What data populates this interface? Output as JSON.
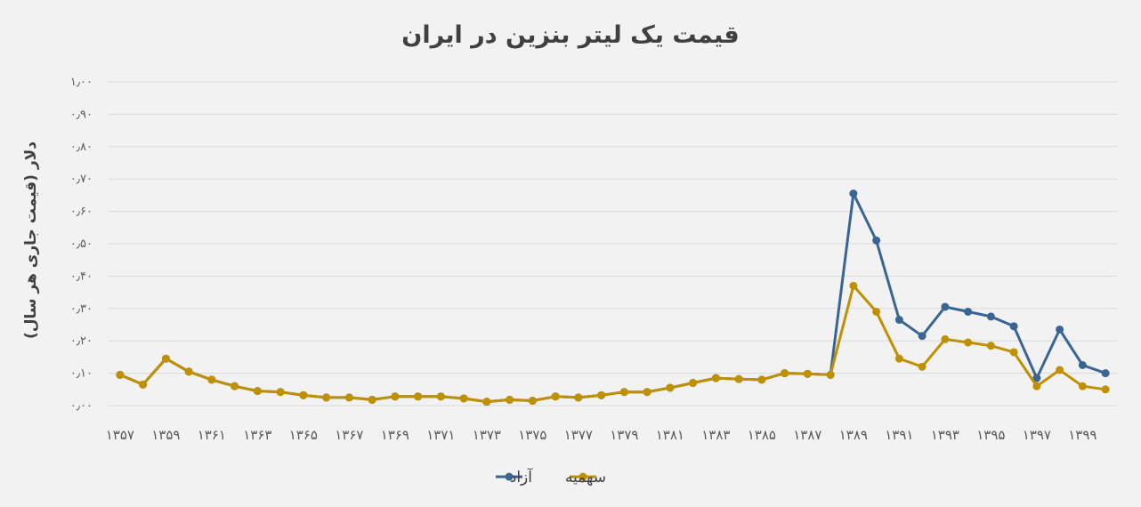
{
  "chart_data": {
    "type": "line",
    "title": "قیمت یک لیتر بنزین در ایران",
    "xlabel": "",
    "ylabel": "دلار (قیمت جاری هر سال)",
    "ylim": [
      0,
      1
    ],
    "yticks": [
      {
        "value": 0.0,
        "label": "۰٫۰۰"
      },
      {
        "value": 0.1,
        "label": "۰٫۱۰"
      },
      {
        "value": 0.2,
        "label": "۰٫۲۰"
      },
      {
        "value": 0.3,
        "label": "۰٫۳۰"
      },
      {
        "value": 0.4,
        "label": "۰٫۴۰"
      },
      {
        "value": 0.5,
        "label": "۰٫۵۰"
      },
      {
        "value": 0.6,
        "label": "۰٫۶۰"
      },
      {
        "value": 0.7,
        "label": "۰٫۷۰"
      },
      {
        "value": 0.8,
        "label": "۰٫۸۰"
      },
      {
        "value": 0.9,
        "label": "۰٫۹۰"
      },
      {
        "value": 1.0,
        "label": "۱٫۰۰"
      }
    ],
    "x": [
      1357,
      1358,
      1359,
      1360,
      1361,
      1362,
      1363,
      1364,
      1365,
      1366,
      1367,
      1368,
      1369,
      1370,
      1371,
      1372,
      1373,
      1374,
      1375,
      1376,
      1377,
      1378,
      1379,
      1380,
      1381,
      1382,
      1383,
      1384,
      1385,
      1386,
      1387,
      1388,
      1389,
      1390,
      1391,
      1392,
      1393,
      1394,
      1395,
      1396,
      1397,
      1398,
      1399,
      1400
    ],
    "xtick_labels": [
      {
        "x": 1357,
        "label": "۱۳۵۷"
      },
      {
        "x": 1359,
        "label": "۱۳۵۹"
      },
      {
        "x": 1361,
        "label": "۱۳۶۱"
      },
      {
        "x": 1363,
        "label": "۱۳۶۳"
      },
      {
        "x": 1365,
        "label": "۱۳۶۵"
      },
      {
        "x": 1367,
        "label": "۱۳۶۷"
      },
      {
        "x": 1369,
        "label": "۱۳۶۹"
      },
      {
        "x": 1371,
        "label": "۱۳۷۱"
      },
      {
        "x": 1373,
        "label": "۱۳۷۳"
      },
      {
        "x": 1375,
        "label": "۱۳۷۵"
      },
      {
        "x": 1377,
        "label": "۱۳۷۷"
      },
      {
        "x": 1379,
        "label": "۱۳۷۹"
      },
      {
        "x": 1381,
        "label": "۱۳۸۱"
      },
      {
        "x": 1383,
        "label": "۱۳۸۳"
      },
      {
        "x": 1385,
        "label": "۱۳۸۵"
      },
      {
        "x": 1387,
        "label": "۱۳۸۷"
      },
      {
        "x": 1389,
        "label": "۱۳۸۹"
      },
      {
        "x": 1391,
        "label": "۱۳۹۱"
      },
      {
        "x": 1393,
        "label": "۱۳۹۳"
      },
      {
        "x": 1395,
        "label": "۱۳۹۵"
      },
      {
        "x": 1397,
        "label": "۱۳۹۷"
      },
      {
        "x": 1399,
        "label": "۱۳۹۹"
      }
    ],
    "grid": true,
    "legend_position": "bottom",
    "series": [
      {
        "name": "آزاد",
        "color": "#3a6593",
        "values": [
          0.095,
          0.065,
          0.145,
          0.105,
          0.08,
          0.06,
          0.045,
          0.042,
          0.032,
          0.025,
          0.025,
          0.018,
          0.028,
          0.028,
          0.028,
          0.022,
          0.012,
          0.018,
          0.015,
          0.028,
          0.025,
          0.032,
          0.042,
          0.042,
          0.055,
          0.07,
          0.085,
          0.082,
          0.08,
          0.1,
          0.098,
          0.095,
          0.655,
          0.51,
          0.265,
          0.215,
          0.305,
          0.29,
          0.275,
          0.245,
          0.085,
          0.235,
          0.125,
          0.1
        ]
      },
      {
        "name": "سهمیه",
        "color": "#bf9000",
        "values": [
          0.095,
          0.065,
          0.145,
          0.105,
          0.08,
          0.06,
          0.045,
          0.042,
          0.032,
          0.025,
          0.025,
          0.018,
          0.028,
          0.028,
          0.028,
          0.022,
          0.012,
          0.018,
          0.015,
          0.028,
          0.025,
          0.032,
          0.042,
          0.042,
          0.055,
          0.07,
          0.085,
          0.082,
          0.08,
          0.1,
          0.098,
          0.095,
          0.37,
          0.29,
          0.145,
          0.12,
          0.205,
          0.195,
          0.185,
          0.165,
          0.06,
          0.11,
          0.06,
          0.05
        ]
      }
    ]
  }
}
